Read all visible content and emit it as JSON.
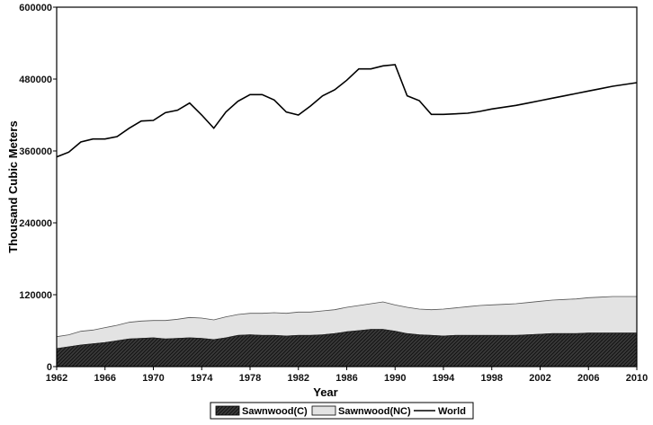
{
  "chart_data": {
    "type": "area",
    "title": "",
    "xlabel": "Year",
    "ylabel": "Thousand Cubic Meters",
    "xlim": [
      1962,
      2010
    ],
    "ylim": [
      0,
      600000
    ],
    "x_ticks": [
      1962,
      1966,
      1970,
      1974,
      1978,
      1982,
      1986,
      1990,
      1994,
      1998,
      2002,
      2006,
      2010
    ],
    "y_ticks": [
      0,
      120000,
      240000,
      360000,
      480000,
      600000
    ],
    "x_tick_labels": [
      "1962",
      "1966",
      "1970",
      "1974",
      "1978",
      "1982",
      "1986",
      "1990",
      "1994",
      "1998",
      "2002",
      "2006",
      "2010"
    ],
    "y_tick_labels": [
      "0",
      "120000",
      "240000",
      "360000",
      "480000",
      "600000"
    ],
    "grid": false,
    "legend_position": "bottom",
    "x": [
      1962,
      1963,
      1964,
      1965,
      1966,
      1967,
      1968,
      1969,
      1970,
      1971,
      1972,
      1973,
      1974,
      1975,
      1976,
      1977,
      1978,
      1979,
      1980,
      1981,
      1982,
      1983,
      1984,
      1985,
      1986,
      1987,
      1988,
      1989,
      1990,
      1991,
      1992,
      1993,
      1994,
      1995,
      1996,
      1997,
      1998,
      1999,
      2000,
      2001,
      2002,
      2003,
      2004,
      2005,
      2006,
      2007,
      2008,
      2009,
      2010
    ],
    "series": [
      {
        "name": "Sawnwood(C)",
        "style": "stacked-area-dark-hatched",
        "color": "#2b2b2b",
        "values": [
          30000,
          33000,
          36000,
          38000,
          40000,
          43000,
          46000,
          47000,
          48000,
          46000,
          47000,
          48000,
          47000,
          45000,
          48000,
          52000,
          53000,
          52000,
          52000,
          51000,
          52000,
          52000,
          53000,
          55000,
          58000,
          60000,
          62000,
          62000,
          59000,
          55000,
          53000,
          52000,
          51000,
          52000,
          52000,
          52000,
          52000,
          52000,
          52000,
          53000,
          54000,
          55000,
          55000,
          55000,
          56000,
          56000,
          56000,
          56000,
          56000
        ]
      },
      {
        "name": "Sawnwood(NC)",
        "style": "stacked-area-light",
        "color": "#e3e3e3",
        "values": [
          20000,
          20000,
          23000,
          23000,
          25000,
          26000,
          28000,
          29000,
          29000,
          31000,
          32000,
          34000,
          34000,
          33000,
          35000,
          35000,
          36000,
          37000,
          38000,
          38000,
          39000,
          39000,
          40000,
          40000,
          41000,
          42000,
          43000,
          46000,
          44000,
          44000,
          43000,
          43000,
          45000,
          46000,
          48000,
          50000,
          51000,
          52000,
          53000,
          54000,
          55000,
          56000,
          57000,
          58000,
          59000,
          60000,
          61000,
          61000,
          61000
        ]
      },
      {
        "name": "World",
        "style": "line",
        "color": "#000000",
        "values": [
          350000,
          358000,
          375000,
          380000,
          380000,
          384000,
          398000,
          410000,
          411000,
          424000,
          428000,
          440000,
          420000,
          398000,
          425000,
          443000,
          454000,
          454000,
          445000,
          425000,
          420000,
          435000,
          452000,
          462000,
          478000,
          497000,
          497000,
          502000,
          504000,
          452000,
          444000,
          421000,
          421000,
          422000,
          423000,
          426000,
          430000,
          433000,
          436000,
          440000,
          444000,
          448000,
          452000,
          456000,
          460000,
          464000,
          468000,
          471000,
          474000
        ]
      }
    ]
  }
}
